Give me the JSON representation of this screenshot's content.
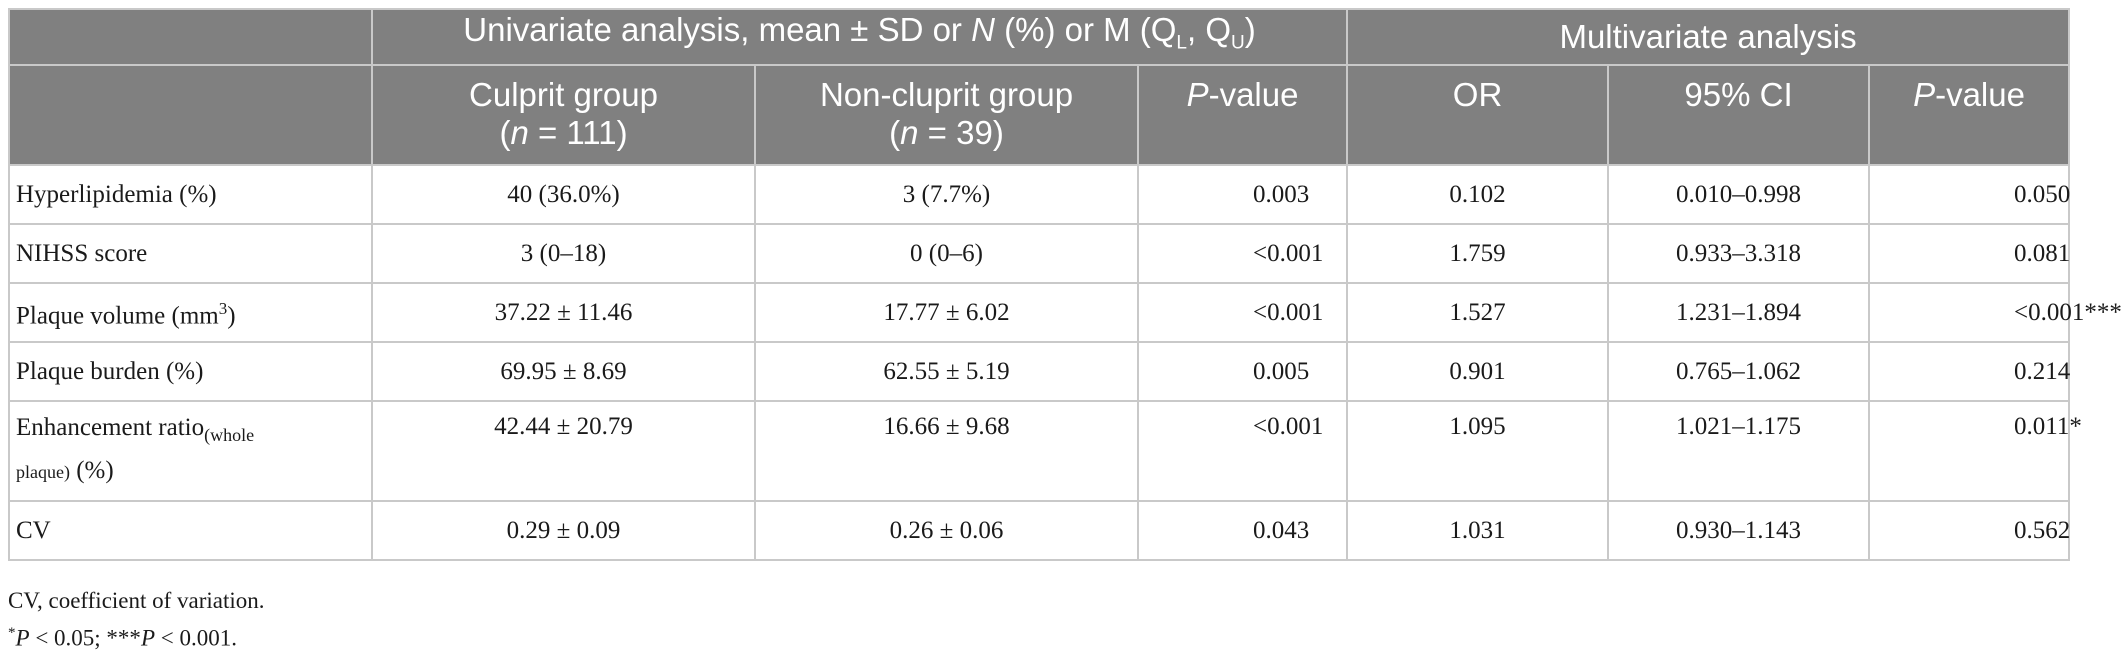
{
  "header": {
    "univariate_title_pre": "Univariate analysis, mean ± SD or ",
    "univariate_N": "N",
    "univariate_title_mid": " (%) or M (Q",
    "univariate_L": "L",
    "univariate_comma": ", Q",
    "univariate_U": "U",
    "univariate_close": ")",
    "multivariate_title": "Multivariate analysis",
    "culprit_label": "Culprit group",
    "culprit_n_open": "(",
    "culprit_n_italic": "n",
    "culprit_n_value": " = 111)",
    "nonculprit_label": "Non-cluprit group",
    "nonculprit_n_open": "(",
    "nonculprit_n_italic": "n",
    "nonculprit_n_value": " = 39)",
    "pvalue_italic": "P",
    "pvalue_rest": "-value",
    "or_label": "OR",
    "ci_label": "95% CI",
    "mpvalue_italic": "P",
    "mpvalue_rest": "-value"
  },
  "rows": [
    {
      "label": "Hyperlipidemia (%)",
      "culprit": "40 (36.0%)",
      "nonculprit": "3 (7.7%)",
      "p": "0.003",
      "or": "0.102",
      "ci": "0.010–0.998",
      "mp": "0.050"
    },
    {
      "label": "NIHSS score",
      "culprit": "3 (0–18)",
      "nonculprit": "0 (0–6)",
      "p": "<0.001",
      "or": "1.759",
      "ci": "0.933–3.318",
      "mp": "0.081"
    },
    {
      "label_pre": "Plaque volume (mm",
      "label_sup": "3",
      "label_post": ")",
      "culprit": "37.22 ± 11.46",
      "nonculprit": "17.77 ± 6.02",
      "p": "<0.001",
      "or": "1.527",
      "ci": "1.231–1.894",
      "mp": "<0.001***"
    },
    {
      "label": "Plaque burden (%)",
      "culprit": "69.95 ± 8.69",
      "nonculprit": "62.55 ± 5.19",
      "p": "0.005",
      "or": "0.901",
      "ci": "0.765–1.062",
      "mp": "0.214"
    },
    {
      "label_pre": "Enhancement ratio",
      "label_sub1": "(whole",
      "label_sub2": "plaque)",
      "label_post": " (%)",
      "culprit": "42.44 ± 20.79",
      "nonculprit": "16.66 ± 9.68",
      "p": "<0.001",
      "or": "1.095",
      "ci": "1.021–1.175",
      "mp": "0.011*"
    },
    {
      "label": "CV",
      "culprit": "0.29 ± 0.09",
      "nonculprit": "0.26 ± 0.06",
      "p": "0.043",
      "or": "1.031",
      "ci": "0.930–1.143",
      "mp": "0.562"
    }
  ],
  "footnotes": {
    "line1": "CV, coefficient of variation.",
    "star1": "*",
    "p1": "P",
    "lt1": " < 0.05; ***",
    "p2": "P",
    "lt2": " < 0.001."
  }
}
